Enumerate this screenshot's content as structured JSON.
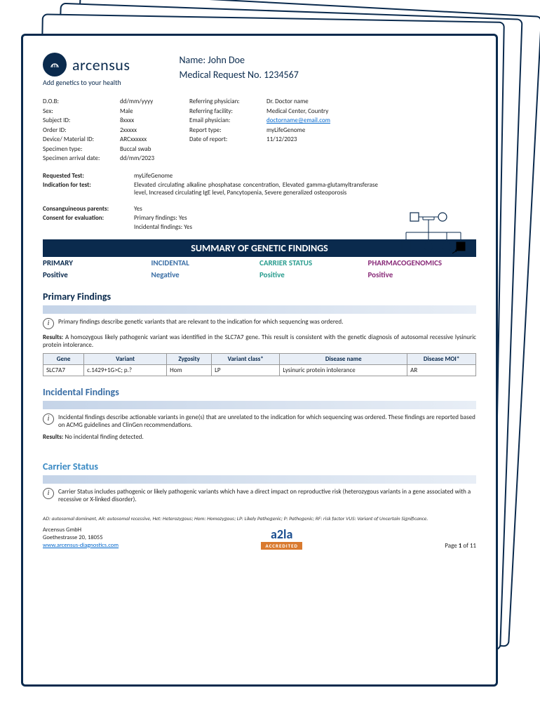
{
  "brand": {
    "name": "arcensus",
    "tagline": "Add genetics to your health"
  },
  "patient": {
    "name_label": "Name:",
    "name": "John Doe",
    "req_label": "Medical Request No.",
    "req_no": "1234567"
  },
  "info_left": {
    "labels": [
      "D.O.B:",
      "Sex:",
      "Subject ID:",
      "Order ID:",
      "Device/ Material ID:",
      "Specimen type:",
      "Specimen arrival date:"
    ],
    "values": [
      "dd/mm/yyyy",
      "Male",
      "8xxxx",
      "2xxxxx",
      "ARCxxxxxx",
      "Buccal swab",
      "dd/mm/2023"
    ]
  },
  "info_right": {
    "labels": [
      "Referring physician:",
      "Referring facility:",
      "Email physician:",
      "Report type:",
      "Date of report:"
    ],
    "values": [
      "Dr. Doctor name",
      "Medical Center, Country",
      "doctorname@email.com",
      "myLifeGenome",
      "11/12/2023"
    ],
    "email_index": 2
  },
  "requested": {
    "test_label": "Requested Test:",
    "test_val": "myLifeGenome",
    "indication_label": "Indication for test:",
    "indication_val": "Elevated circulating alkaline phosphatase concentration, Elevated gamma-glutamyltransferase level, Increased circulating IgE level, Pancytopenia, Severe generalized osteoporosis",
    "consang_label": "Consanguineous parents:",
    "consang_val": "Yes",
    "consent_label": "Consent for evaluation:",
    "consent_val1": "Primary findings: Yes",
    "consent_val2": "Incidental findings: Yes"
  },
  "summary": {
    "title": "SUMMARY OF GENETIC FINDINGS",
    "heads": [
      "PRIMARY",
      "INCIDENTAL",
      "CARRIER STATUS",
      "PHARMACOGENOMICS"
    ],
    "vals": [
      "Positive",
      "Negative",
      "Positive",
      "Positive"
    ]
  },
  "primary": {
    "title": "Primary Findings",
    "desc": "Primary findings describe genetic variants that are relevant to the indication for which sequencing was ordered.",
    "results_label": "Results:",
    "results": " A homozygous likely pathogenic variant was identified in the SLC7A7 gene. This result is consistent with the genetic diagnosis of autosomal recessive lysinuric protein intolerance.",
    "table": {
      "cols": [
        "Gene",
        "Variant",
        "Zygosity",
        "Variant class*",
        "Disease name",
        "Disease MOI*"
      ],
      "row": [
        "SLC7A7",
        "c.1429+1G>C; p.?",
        "Hom",
        "LP",
        "Lysinuric protein intolerance",
        "AR"
      ]
    }
  },
  "incidental": {
    "title": "Incidental Findings",
    "desc": "Incidental findings describe actionable variants in gene(s) that are unrelated to the indication for which sequencing was ordered. These findings are reported based on ACMG guidelines and ClinGen recommendations.",
    "results_label": "Results:",
    "results": " No incidental finding detected."
  },
  "carrier": {
    "title": "Carrier Status",
    "desc": "Carrier Status includes pathogenic or likely pathogenic variants which have a direct impact on reproductive risk (heterozygous variants in a gene associated with a recessive or X-linked disorder)."
  },
  "legend": "AD: autosomal dominant, AR: autosomal recessive, Het: Heterozygous; Hom: Homozygous; LP: Likely Pathogenic; P: Pathogenic; RF: risk factor VUS: Variant of Uncertain Significance.",
  "footer": {
    "company": "Arcensus GmbH",
    "address": "Goethestrasse 20, 18055",
    "website": "www.arcensus-diagnostics.com",
    "accredited": "ACCREDITED",
    "page": "Page ",
    "page_cur": "1",
    "page_of": " of 11"
  },
  "colors": {
    "navy": "#0a2a4d",
    "blue": "#3a6ea5",
    "teal": "#2a9d8f",
    "purple": "#8a2d7a"
  }
}
